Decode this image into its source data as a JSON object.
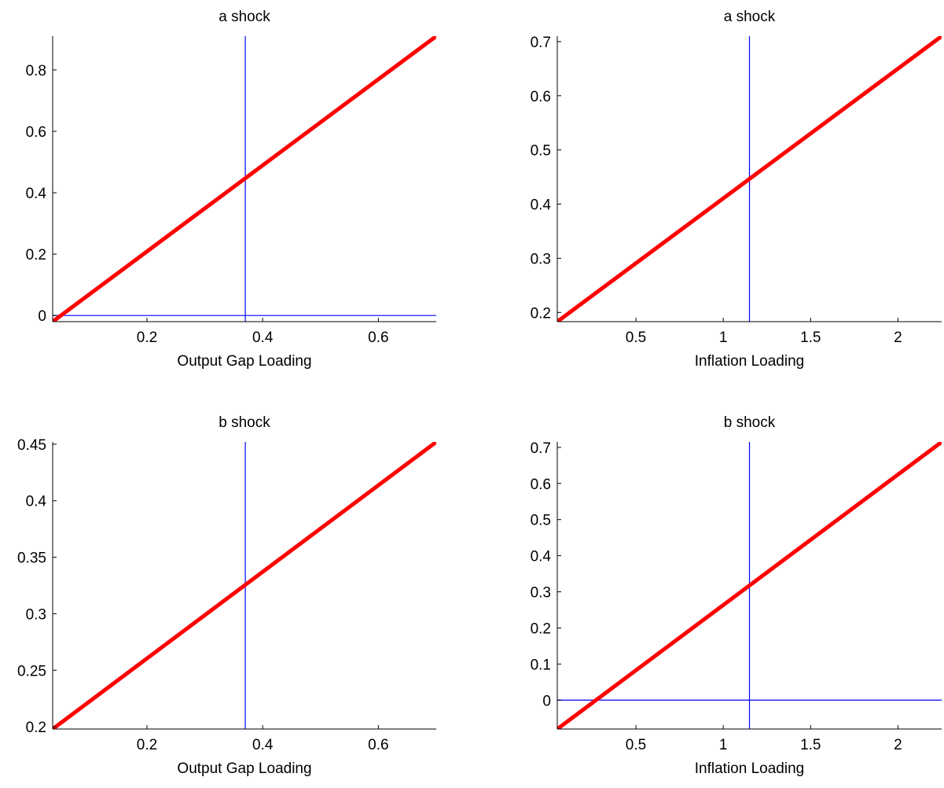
{
  "colors": {
    "background": "#ffffff",
    "axis": "#000000",
    "main_line": "#ff0000",
    "reference_lines": "#0000ff"
  },
  "chart_data": [
    {
      "type": "line",
      "title": "a shock",
      "xlabel": "Output Gap Loading",
      "ylabel": "",
      "xlim": [
        0.037,
        0.7
      ],
      "ylim": [
        -0.02,
        0.91
      ],
      "xticks": [
        0.2,
        0.4,
        0.6
      ],
      "xtick_labels": [
        "0.2",
        "0.4",
        "0.6"
      ],
      "yticks": [
        0,
        0.2,
        0.4,
        0.6,
        0.8
      ],
      "ytick_labels": [
        "0",
        "0.2",
        "0.4",
        "0.6",
        "0.8"
      ],
      "series": [
        {
          "x": [
            0.037,
            0.7
          ],
          "y": [
            -0.02,
            0.91
          ]
        }
      ],
      "vline_x": 0.37,
      "hline_y": 0,
      "grid": false
    },
    {
      "type": "line",
      "title": "a shock",
      "xlabel": "Inflation Loading",
      "ylabel": "",
      "xlim": [
        0.05,
        2.25
      ],
      "ylim": [
        0.183,
        0.71
      ],
      "xticks": [
        0.5,
        1,
        1.5,
        2
      ],
      "xtick_labels": [
        "0.5",
        "1",
        "1.5",
        "2"
      ],
      "yticks": [
        0.2,
        0.3,
        0.4,
        0.5,
        0.6,
        0.7
      ],
      "ytick_labels": [
        "0.2",
        "0.3",
        "0.4",
        "0.5",
        "0.6",
        "0.7"
      ],
      "series": [
        {
          "x": [
            0.05,
            2.25
          ],
          "y": [
            0.183,
            0.71
          ]
        }
      ],
      "vline_x": 1.15,
      "grid": false
    },
    {
      "type": "line",
      "title": "b shock",
      "xlabel": "Output Gap Loading",
      "ylabel": "",
      "xlim": [
        0.037,
        0.7
      ],
      "ylim": [
        0.198,
        0.452
      ],
      "xticks": [
        0.2,
        0.4,
        0.6
      ],
      "xtick_labels": [
        "0.2",
        "0.4",
        "0.6"
      ],
      "yticks": [
        0.2,
        0.25,
        0.3,
        0.35,
        0.4,
        0.45
      ],
      "ytick_labels": [
        "0.2",
        "0.25",
        "0.3",
        "0.35",
        "0.4",
        "0.45"
      ],
      "series": [
        {
          "x": [
            0.037,
            0.7
          ],
          "y": [
            0.198,
            0.452
          ]
        }
      ],
      "vline_x": 0.37,
      "grid": false
    },
    {
      "type": "line",
      "title": "b shock",
      "xlabel": "Inflation Loading",
      "ylabel": "",
      "xlim": [
        0.05,
        2.25
      ],
      "ylim": [
        -0.08,
        0.715
      ],
      "xticks": [
        0.5,
        1,
        1.5,
        2
      ],
      "xtick_labels": [
        "0.5",
        "1",
        "1.5",
        "2"
      ],
      "yticks": [
        0,
        0.1,
        0.2,
        0.3,
        0.4,
        0.5,
        0.6,
        0.7
      ],
      "ytick_labels": [
        "0",
        "0.1",
        "0.2",
        "0.3",
        "0.4",
        "0.5",
        "0.6",
        "0.7"
      ],
      "series": [
        {
          "x": [
            0.05,
            2.25
          ],
          "y": [
            -0.08,
            0.715
          ]
        }
      ],
      "vline_x": 1.15,
      "hline_y": 0,
      "grid": false
    }
  ]
}
